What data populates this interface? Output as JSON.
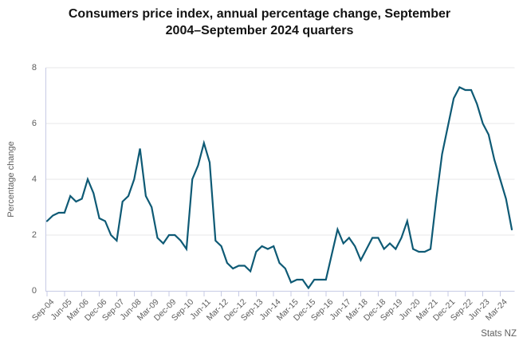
{
  "title_lines": [
    "Consumers price index, annual percentage change, September",
    "2004–September 2024 quarters"
  ],
  "source_label": "Stats NZ",
  "chart_data": {
    "type": "line",
    "title": "Consumers price index, annual percentage change, September 2004–September 2024 quarters",
    "xlabel": "",
    "ylabel": "Percentage change",
    "ylim": [
      0,
      8
    ],
    "yticks": [
      0,
      2,
      4,
      6,
      8
    ],
    "grid": "horizontal",
    "legend": "none",
    "source": "Stats NZ",
    "x_tick_labels": [
      "Sep-04",
      "Jun-05",
      "Mar-06",
      "Dec-06",
      "Sep-07",
      "Jun-08",
      "Mar-09",
      "Dec-09",
      "Sep-10",
      "Jun-11",
      "Mar-12",
      "Dec-12",
      "Sep-13",
      "Jun-14",
      "Mar-15",
      "Dec-15",
      "Sep-16",
      "Jun-17",
      "Mar-18",
      "Dec-18",
      "Sep-19",
      "Jun-20",
      "Mar-21",
      "Dec-21",
      "Sep-22",
      "Jun-23",
      "Mar-24"
    ],
    "x_tick_every": 3,
    "x_start_quarter": "Sep-04",
    "x_end_quarter": "Sep-24",
    "values": [
      2.5,
      2.7,
      2.8,
      2.8,
      3.4,
      3.2,
      3.3,
      4.0,
      3.5,
      2.6,
      2.5,
      2.0,
      1.8,
      3.2,
      3.4,
      4.0,
      5.1,
      3.4,
      3.0,
      1.9,
      1.7,
      2.0,
      2.0,
      1.8,
      1.5,
      4.0,
      4.5,
      5.3,
      4.6,
      1.8,
      1.6,
      1.0,
      0.8,
      0.9,
      0.9,
      0.7,
      1.4,
      1.6,
      1.5,
      1.6,
      1.0,
      0.8,
      0.3,
      0.4,
      0.4,
      0.1,
      0.4,
      0.4,
      0.4,
      1.3,
      2.2,
      1.7,
      1.9,
      1.6,
      1.1,
      1.5,
      1.9,
      1.9,
      1.5,
      1.7,
      1.5,
      1.9,
      2.5,
      1.5,
      1.4,
      1.4,
      1.5,
      3.3,
      4.9,
      5.9,
      6.9,
      7.3,
      7.2,
      7.2,
      6.7,
      6.0,
      5.6,
      4.7,
      4.0,
      3.3,
      2.2
    ],
    "colors": {
      "line": "#0e5a75",
      "grid": "#e7e7ea",
      "axis": "#c7cbe5",
      "tick_text": "#5d5d5d",
      "title_text": "#131313"
    }
  }
}
